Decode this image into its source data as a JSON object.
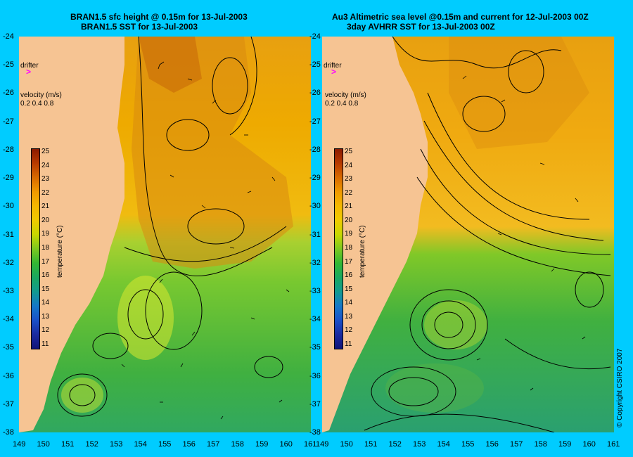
{
  "panels": [
    {
      "id": "left",
      "title_line1": "BRAN1.5 sfc height @ 0.15m for 13-Jul-2003",
      "title_line2": "BRAN1.5 SST for 13-Jul-2003",
      "drifter_label": "drifter",
      "velocity_label": "velocity (m/s)",
      "velocity_scale": "0.2 0.4 0.8"
    },
    {
      "id": "right",
      "title_line1": "Au3 Altimetric sea level  @0.15m and current for 12-Jul-2003 00Z",
      "title_line2": "3day AVHRR SST for 13-Jul-2003 00Z",
      "drifter_label": "drifter",
      "velocity_label": "velocity (m/s)",
      "velocity_scale": "0.2 0.4 0.8"
    }
  ],
  "colorbar": {
    "label": "temperature (°C)",
    "ticks": [
      "25",
      "24",
      "23",
      "22",
      "21",
      "20",
      "19",
      "18",
      "17",
      "16",
      "15",
      "14",
      "13",
      "12",
      "11"
    ],
    "colors": [
      "#8b1a00",
      "#b83a00",
      "#d86a00",
      "#f09a00",
      "#f5b800",
      "#f0cc00",
      "#c8d800",
      "#7cc820",
      "#33b833",
      "#1aa860",
      "#129a90",
      "#1478c8",
      "#1a50c8",
      "#1a2aa0",
      "#101478"
    ]
  },
  "y_axis_ticks": [
    "-24",
    "-25",
    "-26",
    "-27",
    "-28",
    "-29",
    "-30",
    "-31",
    "-32",
    "-33",
    "-34",
    "-35",
    "-36",
    "-37",
    "-38"
  ],
  "x_axis_ticks": [
    "149",
    "150",
    "151",
    "152",
    "153",
    "154",
    "155",
    "156",
    "157",
    "158",
    "159",
    "160",
    "161"
  ],
  "copyright": "© Copyright CSIRO 2007",
  "colors": {
    "background": "#00ccff",
    "land": "#f6c493",
    "drifter": "#ff00ff"
  }
}
